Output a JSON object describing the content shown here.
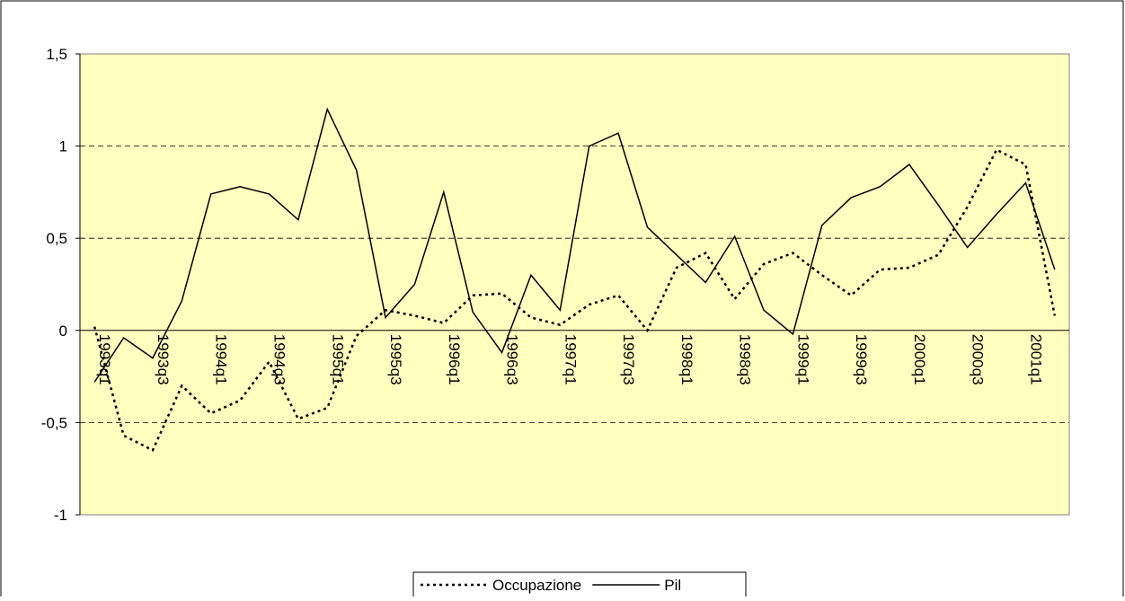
{
  "chart_data": {
    "type": "line",
    "categories": [
      "1993q1",
      null,
      "1993q3",
      null,
      "1994q1",
      null,
      "1994q3",
      null,
      "1995q1",
      null,
      "1995q3",
      null,
      "1996q1",
      null,
      "1996q3",
      null,
      "1997q1",
      null,
      "1997q3",
      null,
      "1998q1",
      null,
      "1998q3",
      null,
      "1999q1",
      null,
      "1999q3",
      null,
      "2000q1",
      null,
      "2000q3",
      null,
      "2001q1",
      null
    ],
    "series": [
      {
        "name": "Occupazione",
        "color": "#000000",
        "dash": "dotted",
        "values": [
          0.02,
          -0.57,
          -0.65,
          -0.3,
          -0.45,
          -0.38,
          -0.17,
          -0.48,
          -0.42,
          -0.03,
          0.11,
          0.08,
          0.04,
          0.19,
          0.2,
          0.07,
          0.03,
          0.14,
          0.19,
          0.0,
          0.34,
          0.42,
          0.17,
          0.36,
          0.42,
          0.3,
          0.19,
          0.33,
          0.34,
          0.41,
          0.67,
          0.98,
          0.9,
          0.08
        ]
      },
      {
        "name": "Pil",
        "color": "#000000",
        "dash": "solid",
        "values": [
          -0.28,
          -0.04,
          -0.15,
          0.16,
          0.74,
          0.78,
          0.74,
          0.6,
          1.2,
          0.87,
          0.07,
          0.25,
          0.75,
          0.1,
          -0.12,
          0.3,
          0.11,
          1.0,
          1.07,
          0.56,
          0.41,
          0.26,
          0.51,
          0.11,
          -0.02,
          0.57,
          0.72,
          0.78,
          0.9,
          0.68,
          0.45,
          0.63,
          0.8,
          0.33
        ]
      }
    ],
    "ylim": [
      -1,
      1.5
    ],
    "yticks": [
      {
        "value": -1,
        "label": "-1"
      },
      {
        "value": -0.5,
        "label": "-0,5"
      },
      0,
      {
        "value": 0.5,
        "label": "0,5"
      },
      1,
      {
        "value": 1.5,
        "label": "1,5"
      }
    ],
    "grid": true,
    "plot_background": "#ffffc0",
    "legend": "bottom"
  }
}
